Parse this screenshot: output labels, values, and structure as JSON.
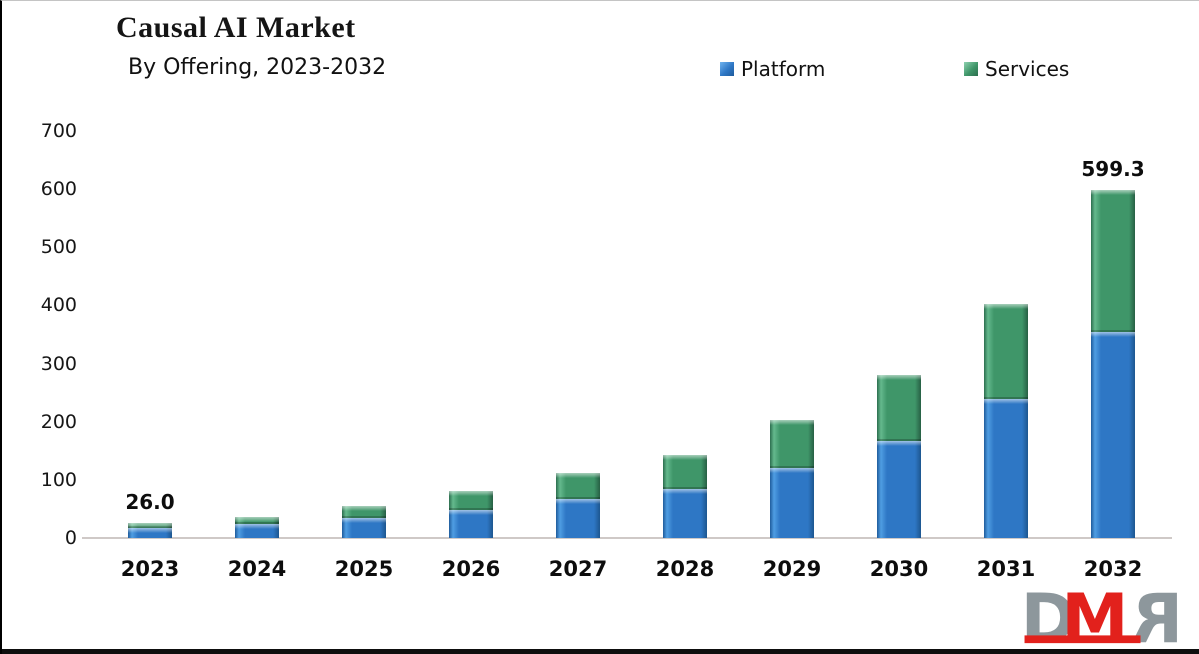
{
  "header": {
    "title": "Causal AI Market",
    "subtitle": "By Offering, 2023-2032"
  },
  "legend": {
    "items": [
      {
        "label": "Platform",
        "color": "#2e77c5"
      },
      {
        "label": "Services",
        "color": "#3f9669"
      }
    ]
  },
  "logo": {
    "text": "DMR",
    "gray": "#8d979c",
    "red": "#e2211c"
  },
  "chart_data": {
    "type": "bar",
    "stacked": true,
    "title": "Causal AI Market",
    "subtitle": "By Offering, 2023-2032",
    "categories": [
      "2023",
      "2024",
      "2025",
      "2026",
      "2027",
      "2028",
      "2029",
      "2030",
      "2031",
      "2032"
    ],
    "series": [
      {
        "name": "Platform",
        "color": "#2e77c5",
        "values": [
          17.2,
          23.5,
          34.5,
          49.0,
          66.5,
          85.0,
          121.0,
          167.0,
          239.0,
          355.0
        ]
      },
      {
        "name": "Services",
        "color": "#3f9669",
        "values": [
          8.8,
          11.5,
          20.5,
          33.0,
          45.5,
          58.0,
          83.0,
          114.0,
          164.0,
          244.3
        ]
      }
    ],
    "totals": [
      26.0,
      35.0,
      55.0,
      82.0,
      112.0,
      143.0,
      204.0,
      281.0,
      403.0,
      599.3
    ],
    "data_labels": [
      {
        "category": "2023",
        "text": "26.0"
      },
      {
        "category": "2032",
        "text": "599.3"
      }
    ],
    "xlabel": "",
    "ylabel": "",
    "ylim": [
      0,
      700
    ],
    "yticks": [
      0,
      100,
      200,
      300,
      400,
      500,
      600,
      700
    ],
    "grid": false,
    "legend_position": "top"
  }
}
